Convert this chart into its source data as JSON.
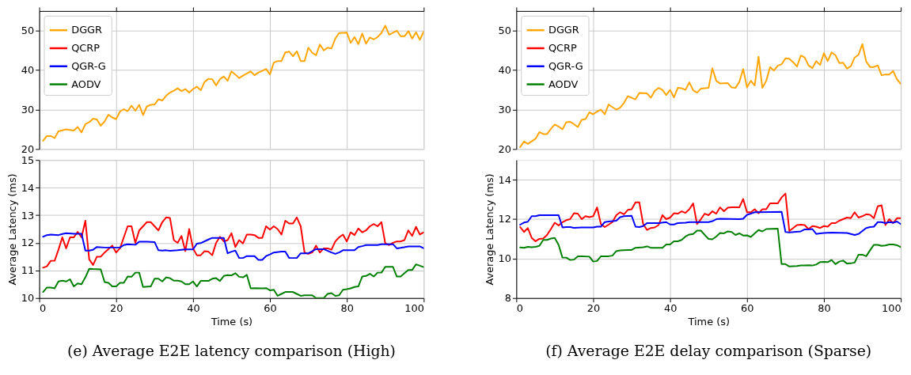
{
  "chart_data": [
    {
      "type": "line",
      "xlim": [
        0,
        100
      ],
      "xticks": [
        0,
        20,
        40,
        60,
        80,
        100
      ],
      "ylim": [
        20,
        55
      ],
      "yticks": [
        20,
        30,
        40,
        50
      ],
      "grid": true,
      "legend": "top left",
      "tick_labels": "y",
      "series": [
        {
          "name": "DGGR",
          "color": "#ffa500",
          "x": [
            1,
            2,
            3,
            4,
            5,
            7,
            9,
            10,
            11,
            12,
            13,
            14,
            15,
            16,
            17,
            18,
            19,
            20,
            21,
            22,
            23,
            24,
            25,
            26,
            27,
            28,
            29,
            30,
            31,
            32,
            33,
            34,
            35,
            36,
            37,
            38,
            39,
            40,
            41,
            42,
            43,
            44,
            45,
            46,
            47,
            48,
            49,
            50,
            51,
            52,
            53,
            55,
            56,
            57,
            58,
            59,
            60,
            61,
            62,
            63,
            64,
            65,
            66,
            67,
            68,
            69,
            70,
            71,
            72,
            73,
            74,
            75,
            76,
            77,
            78,
            80,
            81,
            82,
            83,
            84,
            85,
            86,
            87,
            88,
            89,
            90,
            91,
            92,
            93,
            94,
            95,
            96,
            97,
            98,
            99,
            100
          ],
          "values": [
            22.1,
            23.3,
            23.3,
            22.8,
            24.5,
            25,
            24.7,
            25.6,
            24.2,
            26.3,
            26.8,
            27.7,
            27.5,
            25.9,
            27,
            28.7,
            28,
            27.6,
            29.5,
            30.1,
            29.6,
            31,
            29.7,
            31.2,
            28.6,
            30.8,
            31.2,
            31.3,
            32.6,
            32.3,
            33.5,
            34.3,
            34.8,
            35.4,
            34.7,
            35.2,
            34.3,
            35.2,
            35.8,
            34.9,
            37,
            37.8,
            37.7,
            36.1,
            37.7,
            38.4,
            37.3,
            39.7,
            38.9,
            38,
            38.6,
            39.7,
            38.7,
            39.4,
            39.8,
            40.3,
            38.9,
            41.9,
            42.3,
            42.3,
            44.5,
            44.7,
            43.5,
            44.8,
            42.3,
            42.3,
            45.7,
            44.4,
            43.8,
            46.5,
            45,
            45.7,
            45.5,
            48,
            49.4,
            49.5,
            46.9,
            48.4,
            46.6,
            49.3,
            46.7,
            48.3,
            47.8,
            48.4,
            49.4,
            51.3,
            49,
            49.5,
            50,
            48.6,
            48.6,
            49.9,
            48,
            49.6,
            47.7,
            49.8
          ]
        }
      ]
    },
    {
      "type": "line",
      "xlim": [
        0,
        100
      ],
      "xticks": [
        0,
        20,
        40,
        60,
        80,
        100
      ],
      "ylim": [
        10,
        15
      ],
      "yticks": [
        10,
        11,
        12,
        13,
        14,
        15
      ],
      "grid": true,
      "legend": "top left",
      "xlabel": "Time (s)",
      "ylabel": "Average Latency (ms)",
      "annotations": [
        "(e) Average E2E latency comparison (High)"
      ],
      "series": [
        {
          "name": "QCRP",
          "color": "#ff0000",
          "x": [
            1,
            2,
            3,
            4,
            5,
            6,
            7,
            8,
            9,
            10,
            11,
            12,
            13,
            14,
            15,
            16,
            17,
            19,
            20,
            21,
            22,
            23,
            24,
            25,
            26,
            27,
            28,
            29,
            30,
            31,
            32,
            33,
            34,
            35,
            36,
            37,
            38,
            39,
            40,
            41,
            42,
            43,
            44,
            45,
            46,
            47,
            48,
            49,
            50,
            51,
            52,
            53,
            54,
            55,
            56,
            57,
            58,
            59,
            60,
            61,
            62,
            63,
            64,
            65,
            66,
            67,
            68,
            69,
            70,
            71,
            72,
            73,
            74,
            75,
            76,
            77,
            78,
            79,
            80,
            81,
            82,
            83,
            84,
            85,
            86,
            87,
            88,
            89,
            90,
            91,
            92,
            93,
            94,
            95,
            96,
            97,
            98,
            99,
            100
          ],
          "values": [
            11.1,
            11.15,
            11.35,
            11.35,
            11.75,
            12.2,
            11.8,
            12.2,
            12.2,
            12.4,
            12.2,
            12.8,
            11.4,
            11.2,
            11.5,
            11.5,
            11.65,
            11.9,
            11.65,
            11.8,
            12.2,
            12.6,
            12.6,
            12.0,
            12.45,
            12.6,
            12.75,
            12.75,
            12.6,
            12.45,
            12.75,
            12.92,
            12.9,
            12.1,
            12.0,
            12.25,
            11.7,
            12.5,
            11.8,
            11.55,
            11.55,
            11.7,
            11.68,
            11.55,
            12.0,
            12.22,
            12.05,
            12.1,
            12.35,
            11.85,
            12.1,
            11.98,
            12.3,
            12.3,
            12.28,
            12.18,
            12.18,
            12.6,
            12.48,
            12.6,
            12.5,
            12.3,
            12.8,
            12.7,
            12.7,
            12.92,
            12.6,
            11.65,
            11.6,
            11.65,
            11.9,
            11.65,
            11.8,
            11.8,
            11.75,
            12.05,
            12.2,
            12.3,
            12.05,
            12.38,
            12.28,
            12.52,
            12.38,
            12.45,
            12.6,
            12.68,
            12.6,
            12.75,
            11.98,
            11.92,
            12.0,
            12.05,
            12.05,
            12.1,
            12.45,
            12.25,
            12.58,
            12.3,
            12.38
          ]
        },
        {
          "name": "QGR-G",
          "color": "#0000ff",
          "x": [
            1,
            2,
            3,
            5,
            6,
            7,
            9,
            11,
            12,
            13,
            14,
            15,
            17,
            19,
            21,
            22,
            23,
            25,
            26,
            28,
            30,
            31,
            32,
            33,
            34,
            36,
            38,
            40,
            41,
            42,
            44,
            45,
            46,
            48,
            49,
            50,
            51,
            52,
            53,
            54,
            56,
            57,
            58,
            59,
            60,
            61,
            63,
            64,
            65,
            67,
            68,
            70,
            72,
            74,
            76,
            77,
            78,
            79,
            82,
            83,
            84,
            85,
            88,
            89,
            92,
            93,
            94,
            96,
            99,
            100
          ],
          "values": [
            12.22,
            12.28,
            12.3,
            12.28,
            12.32,
            12.35,
            12.33,
            12.33,
            11.72,
            11.72,
            11.75,
            11.85,
            11.83,
            11.83,
            11.83,
            11.92,
            11.95,
            11.93,
            12.04,
            12.04,
            12.03,
            11.73,
            11.72,
            11.73,
            11.71,
            11.73,
            11.76,
            11.76,
            11.97,
            11.99,
            12.12,
            12.18,
            12.18,
            12.18,
            11.62,
            11.68,
            11.72,
            11.45,
            11.45,
            11.52,
            11.52,
            11.38,
            11.38,
            11.52,
            11.58,
            11.65,
            11.68,
            11.68,
            11.45,
            11.45,
            11.62,
            11.62,
            11.77,
            11.77,
            11.65,
            11.6,
            11.65,
            11.73,
            11.73,
            11.85,
            11.88,
            11.92,
            11.92,
            11.95,
            11.95,
            11.8,
            11.82,
            11.87,
            11.87,
            11.8
          ]
        },
        {
          "name": "AODV",
          "color": "#008000",
          "x": [
            1,
            2,
            3,
            4,
            5,
            6,
            7,
            8,
            9,
            10,
            11,
            12,
            13,
            14,
            16,
            17,
            18,
            19,
            20,
            21,
            22,
            23,
            24,
            25,
            26,
            27,
            29,
            30,
            31,
            32,
            33,
            34,
            35,
            36,
            37,
            38,
            39,
            40,
            41,
            42,
            43,
            44,
            45,
            46,
            47,
            48,
            49,
            50,
            51,
            52,
            53,
            54,
            55,
            56,
            58,
            59,
            60,
            61,
            62,
            63,
            64,
            66,
            67,
            68,
            69,
            71,
            72,
            73,
            74,
            75,
            76,
            77,
            78,
            79,
            80,
            81,
            82,
            83,
            84,
            85,
            86,
            87,
            88,
            89,
            90,
            92,
            93,
            94,
            95,
            96,
            97,
            98,
            99,
            100
          ],
          "values": [
            10.22,
            10.38,
            10.38,
            10.35,
            10.6,
            10.63,
            10.6,
            10.68,
            10.42,
            10.53,
            10.5,
            10.75,
            11.06,
            11.05,
            11.04,
            10.58,
            10.55,
            10.42,
            10.42,
            10.55,
            10.55,
            10.78,
            10.77,
            10.92,
            10.92,
            10.4,
            10.42,
            10.7,
            10.7,
            10.6,
            10.75,
            10.72,
            10.63,
            10.63,
            10.6,
            10.5,
            10.5,
            10.6,
            10.42,
            10.62,
            10.62,
            10.62,
            10.7,
            10.72,
            10.62,
            10.8,
            10.83,
            10.82,
            10.9,
            10.77,
            10.75,
            10.84,
            10.35,
            10.36,
            10.35,
            10.36,
            10.28,
            10.3,
            10.08,
            10.15,
            10.22,
            10.22,
            10.15,
            10.08,
            10.1,
            10.1,
            10.0,
            10.0,
            10.0,
            10.15,
            10.18,
            10.08,
            10.1,
            10.3,
            10.32,
            10.35,
            10.4,
            10.42,
            10.78,
            10.8,
            10.88,
            10.78,
            10.92,
            10.92,
            11.13,
            11.13,
            10.78,
            10.78,
            10.9,
            11.02,
            11.02,
            11.22,
            11.17,
            11.12
          ]
        }
      ]
    },
    {
      "type": "line",
      "xlim": [
        0,
        100
      ],
      "xticks": [
        0,
        20,
        40,
        60,
        80,
        100
      ],
      "ylim": [
        20,
        55
      ],
      "yticks": [
        20,
        30,
        40,
        50
      ],
      "grid": true,
      "legend": "top left",
      "tick_labels": "y",
      "series": [
        {
          "name": "DGGR",
          "color": "#ffa500",
          "x": [
            1,
            2,
            3,
            5,
            6,
            7,
            8,
            9,
            10,
            11,
            12,
            13,
            14,
            15,
            16,
            17,
            18,
            19,
            20,
            21,
            22,
            23,
            24,
            25,
            26,
            27,
            28,
            29,
            30,
            31,
            32,
            34,
            35,
            36,
            37,
            38,
            39,
            40,
            41,
            42,
            43,
            44,
            45,
            46,
            47,
            48,
            49,
            50,
            51,
            52,
            53,
            55,
            56,
            57,
            58,
            59,
            60,
            61,
            62,
            63,
            64,
            65,
            66,
            67,
            68,
            69,
            70,
            71,
            72,
            73,
            74,
            75,
            76,
            77,
            78,
            79,
            80,
            81,
            82,
            83,
            84,
            85,
            86,
            87,
            88,
            89,
            90,
            91,
            92,
            93,
            94,
            95,
            96,
            97,
            98,
            99,
            100
          ],
          "values": [
            20.5,
            21.9,
            21.3,
            22.6,
            24.3,
            23.8,
            23.8,
            25.1,
            26.2,
            25.7,
            25.0,
            26.8,
            26.9,
            26.3,
            25.6,
            27.4,
            27.6,
            29.3,
            28.8,
            29.5,
            30.0,
            28.8,
            31.3,
            30.6,
            30.0,
            30.5,
            31.7,
            33.4,
            33.0,
            32.6,
            34.2,
            34.1,
            33.0,
            34.7,
            35.5,
            35.0,
            33.7,
            35.0,
            33.1,
            35.5,
            35.4,
            35.0,
            36.9,
            34.9,
            34.3,
            35.3,
            35.4,
            35.5,
            40.5,
            37.3,
            36.6,
            36.7,
            35.6,
            35.5,
            37.0,
            40.3,
            35.6,
            37.3,
            36.1,
            43.4,
            35.5,
            37.3,
            40.8,
            39.9,
            41.1,
            41.5,
            43.0,
            42.9,
            42.0,
            40.9,
            43.7,
            43.2,
            41.2,
            40.5,
            42.3,
            41.3,
            44.3,
            42.3,
            44.5,
            43.8,
            41.8,
            41.9,
            40.4,
            41.0,
            43.2,
            43.9,
            46.6,
            42.2,
            40.8,
            40.8,
            41.2,
            38.7,
            38.9,
            38.9,
            39.8,
            37.7,
            36.5
          ]
        }
      ]
    },
    {
      "type": "line",
      "xlim": [
        0,
        100
      ],
      "xticks": [
        0,
        20,
        40,
        60,
        80,
        100
      ],
      "ylim": [
        8,
        15
      ],
      "yticks": [
        8,
        10,
        12,
        14
      ],
      "grid": true,
      "legend": "top left",
      "xlabel": "Time (s)",
      "ylabel": "Average Latency (ms)",
      "annotations": [
        "(f) Average E2E delay comparison (Sparse)"
      ],
      "series": [
        {
          "name": "QCRP",
          "color": "#ff0000",
          "x": [
            1,
            2,
            3,
            4,
            5,
            6,
            7,
            8,
            9,
            10,
            11,
            12,
            13,
            14,
            15,
            16,
            17,
            18,
            19,
            20,
            21,
            22,
            23,
            24,
            25,
            26,
            27,
            28,
            29,
            30,
            31,
            32,
            33,
            34,
            35,
            36,
            37,
            38,
            39,
            40,
            41,
            42,
            43,
            44,
            45,
            46,
            47,
            48,
            49,
            50,
            51,
            52,
            53,
            54,
            55,
            56,
            58,
            59,
            60,
            61,
            62,
            63,
            64,
            65,
            66,
            68,
            69,
            70,
            71,
            72,
            73,
            74,
            75,
            76,
            77,
            78,
            79,
            80,
            81,
            82,
            83,
            84,
            85,
            86,
            87,
            88,
            89,
            90,
            91,
            92,
            93,
            94,
            95,
            96,
            97,
            98,
            99,
            100
          ],
          "values": [
            11.6,
            11.35,
            11.55,
            11.05,
            10.88,
            11.0,
            11.02,
            11.2,
            11.5,
            11.82,
            11.68,
            11.85,
            11.95,
            12.0,
            12.3,
            12.28,
            12.0,
            12.15,
            12.1,
            12.15,
            12.6,
            11.75,
            11.6,
            11.72,
            11.85,
            12.2,
            12.35,
            12.25,
            12.47,
            12.5,
            12.85,
            12.85,
            11.75,
            11.45,
            11.55,
            11.58,
            11.7,
            12.2,
            12.0,
            12.08,
            12.3,
            12.28,
            12.4,
            12.32,
            12.5,
            12.8,
            11.75,
            12.0,
            12.28,
            12.2,
            12.4,
            12.28,
            12.6,
            12.4,
            12.58,
            12.6,
            12.6,
            13.02,
            12.35,
            12.35,
            12.5,
            12.3,
            12.5,
            12.5,
            12.8,
            12.8,
            13.1,
            13.3,
            11.4,
            11.55,
            11.7,
            11.72,
            11.7,
            11.5,
            11.65,
            11.62,
            11.55,
            11.65,
            11.62,
            11.8,
            11.8,
            11.92,
            12.0,
            12.08,
            12.05,
            12.35,
            12.08,
            12.15,
            12.25,
            12.22,
            12.05,
            12.65,
            12.7,
            11.7,
            12.0,
            11.8,
            12.05,
            12.05
          ]
        },
        {
          "name": "QGR-G",
          "color": "#0000ff",
          "x": [
            1,
            2,
            3,
            4,
            5,
            6,
            11,
            12,
            13,
            14,
            15,
            17,
            20,
            21,
            22,
            23,
            24,
            26,
            27,
            28,
            30,
            31,
            32,
            33,
            34,
            37,
            39,
            40,
            41,
            42,
            44,
            45,
            50,
            51,
            52,
            53,
            58,
            59,
            60,
            61,
            62,
            63,
            69,
            70,
            71,
            74,
            75,
            76,
            77,
            78,
            79,
            80,
            82,
            86,
            87,
            88,
            89,
            90,
            91,
            92,
            93,
            94,
            95,
            96,
            97,
            98,
            99,
            100
          ],
          "values": [
            11.72,
            11.83,
            11.87,
            12.15,
            12.15,
            12.2,
            12.2,
            11.58,
            11.6,
            11.6,
            11.56,
            11.58,
            11.58,
            11.62,
            11.62,
            11.85,
            11.88,
            11.92,
            12.1,
            12.15,
            12.17,
            11.62,
            11.6,
            11.65,
            11.8,
            11.8,
            11.85,
            11.73,
            11.73,
            11.8,
            11.82,
            11.85,
            11.85,
            11.9,
            12.0,
            12.02,
            12.0,
            12.02,
            12.22,
            12.28,
            12.35,
            12.35,
            12.37,
            11.35,
            11.33,
            11.38,
            11.48,
            11.48,
            11.5,
            11.25,
            11.28,
            11.3,
            11.32,
            11.3,
            11.25,
            11.2,
            11.25,
            11.4,
            11.55,
            11.6,
            11.62,
            11.85,
            11.85,
            11.8,
            11.85,
            11.82,
            11.88,
            11.75
          ]
        },
        {
          "name": "AODV",
          "color": "#008000",
          "x": [
            1,
            2,
            3,
            4,
            5,
            6,
            7,
            8,
            9,
            10,
            11,
            12,
            13,
            14,
            15,
            16,
            17,
            19,
            20,
            21,
            22,
            24,
            25,
            26,
            27,
            29,
            30,
            31,
            33,
            34,
            35,
            36,
            38,
            39,
            40,
            41,
            42,
            43,
            44,
            45,
            46,
            47,
            48,
            49,
            50,
            51,
            52,
            53,
            54,
            55,
            56,
            57,
            58,
            59,
            60,
            61,
            62,
            63,
            64,
            65,
            68,
            69,
            70,
            71,
            73,
            74,
            76,
            77,
            78,
            79,
            80,
            81,
            82,
            83,
            84,
            85,
            86,
            87,
            88,
            89,
            90,
            91,
            92,
            93,
            94,
            95,
            96,
            97,
            98,
            99,
            100
          ],
          "values": [
            10.57,
            10.55,
            10.6,
            10.58,
            10.6,
            10.65,
            10.95,
            10.95,
            11.02,
            11.05,
            10.7,
            10.05,
            10.05,
            9.93,
            9.95,
            10.12,
            10.12,
            10.1,
            9.85,
            9.88,
            10.12,
            10.12,
            10.15,
            10.38,
            10.42,
            10.44,
            10.44,
            10.55,
            10.58,
            10.62,
            10.55,
            10.55,
            10.55,
            10.72,
            10.72,
            10.88,
            10.88,
            10.95,
            11.12,
            11.22,
            11.25,
            11.42,
            11.42,
            11.2,
            11.0,
            10.98,
            11.12,
            11.3,
            11.28,
            11.38,
            11.35,
            11.2,
            11.28,
            11.17,
            11.18,
            11.1,
            11.28,
            11.45,
            11.38,
            11.5,
            11.52,
            9.72,
            9.72,
            9.6,
            9.62,
            9.65,
            9.66,
            9.65,
            9.7,
            9.82,
            9.83,
            9.82,
            9.93,
            9.72,
            9.85,
            9.9,
            9.75,
            9.76,
            9.8,
            10.2,
            10.2,
            10.12,
            10.42,
            10.7,
            10.7,
            10.65,
            10.67,
            10.72,
            10.72,
            10.68,
            10.58
          ]
        }
      ]
    }
  ]
}
